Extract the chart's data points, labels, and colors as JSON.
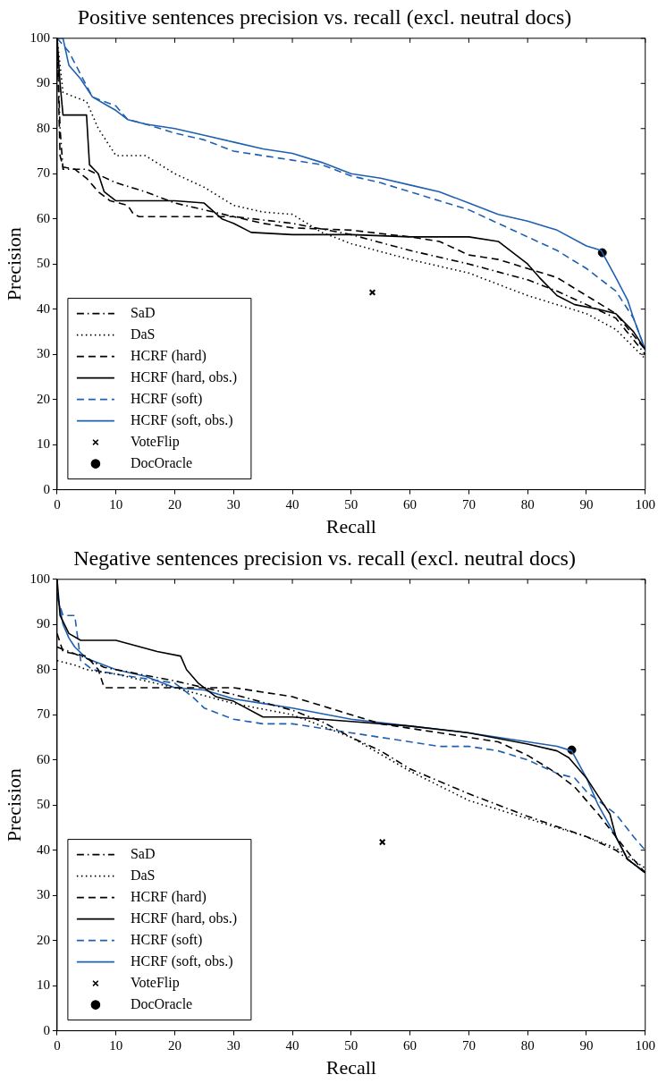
{
  "chart_data": [
    {
      "type": "line",
      "title": "Positive sentences precision vs. recall (excl. neutral docs)",
      "xlabel": "Recall",
      "ylabel": "Precision",
      "xlim": [
        0,
        100
      ],
      "ylim": [
        0,
        100
      ],
      "xticks": [
        0,
        10,
        20,
        30,
        40,
        50,
        60,
        70,
        80,
        90,
        100
      ],
      "yticks": [
        0,
        10,
        20,
        30,
        40,
        50,
        60,
        70,
        80,
        90,
        100
      ],
      "grid": false,
      "legend": "bottom left",
      "series": [
        {
          "name": "SaD",
          "line_style": "dashdot",
          "color": "#000000",
          "x": [
            0,
            0.5,
            1,
            5,
            10,
            15,
            20,
            25,
            30,
            40,
            50,
            60,
            70,
            80,
            85,
            90,
            95,
            100
          ],
          "values": [
            100,
            80,
            71,
            71,
            68,
            66,
            63.5,
            62,
            60.5,
            59,
            56.5,
            53,
            50,
            46.5,
            44,
            41,
            38,
            30
          ]
        },
        {
          "name": "DaS",
          "line_style": "dotted",
          "color": "#000000",
          "x": [
            0,
            1,
            5,
            7,
            10,
            15,
            20,
            25,
            30,
            35,
            40,
            45,
            50,
            60,
            70,
            80,
            90,
            95,
            100
          ],
          "values": [
            100,
            88,
            86,
            80,
            74,
            74,
            70,
            67,
            63,
            61.5,
            61,
            57,
            54.5,
            51,
            48,
            43,
            39,
            35.5,
            29
          ]
        },
        {
          "name": "HCRF (hard)",
          "line_style": "dashed",
          "color": "#000000",
          "x": [
            0,
            0.5,
            1,
            3,
            5,
            7,
            9,
            12,
            13,
            14,
            30,
            35,
            40,
            50,
            60,
            65,
            70,
            75,
            80,
            85,
            90,
            95,
            100
          ],
          "values": [
            100,
            74,
            71.5,
            71,
            69,
            66,
            64,
            63,
            61,
            60.5,
            60.5,
            59,
            58,
            57.5,
            56,
            55,
            52,
            51,
            49,
            47,
            43,
            39,
            31
          ]
        },
        {
          "name": "HCRF (hard, obs.)",
          "line_style": "solid",
          "color": "#000000",
          "x": [
            0,
            0.5,
            1,
            5,
            5.5,
            7,
            8,
            10,
            20,
            25,
            28,
            30,
            33,
            40,
            50,
            60,
            70,
            75,
            80,
            82,
            85,
            88,
            92,
            95,
            98,
            100
          ],
          "values": [
            100,
            90,
            83,
            83,
            72,
            70,
            66,
            64,
            64,
            63.5,
            60,
            59,
            57,
            56.5,
            56.5,
            56,
            56,
            55,
            50,
            47,
            43,
            41,
            40,
            39,
            35,
            31
          ]
        },
        {
          "name": "HCRF (soft)",
          "line_style": "dashed",
          "color": "#2060b0",
          "x": [
            0,
            2,
            4,
            6,
            8,
            10,
            12,
            15,
            20,
            25,
            30,
            35,
            40,
            45,
            50,
            55,
            60,
            65,
            70,
            75,
            80,
            85,
            90,
            95,
            98,
            100
          ],
          "values": [
            100,
            97,
            92,
            87,
            86,
            85,
            82,
            81,
            79,
            77.5,
            75,
            74,
            73,
            72,
            69.5,
            68,
            66,
            64,
            62,
            59,
            56,
            53,
            49,
            44,
            38,
            31
          ]
        },
        {
          "name": "HCRF (soft, obs.)",
          "line_style": "solid",
          "color": "#2060b0",
          "x": [
            0,
            1,
            2,
            4,
            6,
            8,
            10,
            12,
            15,
            20,
            25,
            30,
            35,
            40,
            45,
            50,
            55,
            60,
            65,
            70,
            75,
            80,
            85,
            90,
            92.5,
            95,
            97,
            98,
            100
          ],
          "values": [
            100,
            100,
            94,
            91,
            87,
            85.5,
            84,
            82,
            81,
            80,
            78.5,
            77,
            75.5,
            74.5,
            72.5,
            70,
            69,
            67.5,
            66,
            63.5,
            61,
            59.5,
            57.5,
            54,
            53,
            47,
            42,
            38,
            31
          ]
        },
        {
          "name": "VoteFlip",
          "type": "scatter",
          "marker": "cross",
          "color": "#000000",
          "x": [
            53.6
          ],
          "values": [
            43.7
          ]
        },
        {
          "name": "DocOracle",
          "type": "scatter",
          "marker": "circle",
          "color": "#000000",
          "x": [
            92.7
          ],
          "values": [
            52.5
          ]
        }
      ]
    },
    {
      "type": "line",
      "title": "Negative sentences precision vs. recall (excl. neutral docs)",
      "xlabel": "Recall",
      "ylabel": "Precision",
      "xlim": [
        0,
        100
      ],
      "ylim": [
        0,
        100
      ],
      "xticks": [
        0,
        10,
        20,
        30,
        40,
        50,
        60,
        70,
        80,
        90,
        100
      ],
      "yticks": [
        0,
        10,
        20,
        30,
        40,
        50,
        60,
        70,
        80,
        90,
        100
      ],
      "grid": false,
      "legend": "bottom left",
      "series": [
        {
          "name": "SaD",
          "line_style": "dashdot",
          "color": "#000000",
          "x": [
            0,
            2,
            5,
            8,
            10,
            20,
            30,
            40,
            45,
            50,
            55,
            60,
            70,
            80,
            90,
            95,
            100
          ],
          "values": [
            85,
            84,
            82.5,
            80.5,
            80,
            77.5,
            74.5,
            71,
            68.5,
            65,
            62,
            58,
            52.5,
            47.5,
            43,
            40,
            35
          ]
        },
        {
          "name": "DaS",
          "line_style": "dotted",
          "color": "#000000",
          "x": [
            0,
            3,
            5,
            10,
            20,
            30,
            40,
            50,
            60,
            70,
            80,
            90,
            95,
            100
          ],
          "values": [
            82,
            81,
            80,
            79,
            76,
            72.5,
            70,
            65,
            57.5,
            51,
            47,
            43,
            40.5,
            36
          ]
        },
        {
          "name": "HCRF (hard)",
          "line_style": "dashed",
          "color": "#000000",
          "x": [
            0,
            1,
            5,
            7,
            8,
            15,
            20,
            25,
            30,
            35,
            40,
            45,
            50,
            55,
            60,
            70,
            75,
            80,
            85,
            88,
            92,
            95,
            98,
            100
          ],
          "values": [
            88,
            84,
            83,
            80,
            76,
            76,
            76,
            76,
            76,
            75,
            74,
            72,
            70,
            68,
            67,
            65,
            64,
            61,
            57,
            54,
            48,
            43,
            38,
            35
          ]
        },
        {
          "name": "HCRF (hard, obs.)",
          "line_style": "solid",
          "color": "#000000",
          "x": [
            0,
            0.5,
            2,
            4,
            10,
            17,
            21,
            22,
            24,
            27,
            30,
            35,
            40,
            50,
            60,
            70,
            80,
            85,
            87,
            90,
            92,
            94,
            95,
            97,
            100
          ],
          "values": [
            100,
            92,
            88,
            86.5,
            86.5,
            84,
            83,
            80,
            77,
            74,
            73,
            69.5,
            69.5,
            68.5,
            67.5,
            66,
            63.5,
            62,
            60.5,
            56,
            52,
            48,
            43,
            38,
            35
          ]
        },
        {
          "name": "HCRF (soft)",
          "line_style": "dashed",
          "color": "#2060b0",
          "x": [
            0,
            1,
            3,
            4,
            6,
            10,
            15,
            20,
            23,
            25,
            30,
            35,
            40,
            45,
            50,
            55,
            60,
            65,
            70,
            75,
            80,
            85,
            88,
            90,
            95,
            98,
            100
          ],
          "values": [
            96,
            92,
            92,
            82,
            80,
            79,
            78,
            77,
            74,
            71.5,
            69,
            68,
            68,
            67,
            66,
            65,
            64,
            63,
            63,
            62,
            60,
            57,
            56,
            53,
            48,
            43,
            40
          ]
        },
        {
          "name": "HCRF (soft, obs.)",
          "line_style": "solid",
          "color": "#2060b0",
          "x": [
            0,
            1,
            2,
            3,
            5,
            10,
            15,
            20,
            25,
            30,
            35,
            40,
            50,
            60,
            70,
            80,
            85,
            87.5,
            90,
            92,
            95,
            97,
            100
          ],
          "values": [
            97,
            90,
            87,
            85,
            82.5,
            80,
            78.5,
            76,
            75.5,
            73.5,
            72.5,
            71.5,
            69,
            67.5,
            66,
            64,
            63,
            62,
            56,
            50,
            43,
            38,
            35
          ]
        },
        {
          "name": "VoteFlip",
          "type": "scatter",
          "marker": "cross",
          "color": "#000000",
          "x": [
            55.3
          ],
          "values": [
            41.8
          ]
        },
        {
          "name": "DocOracle",
          "type": "scatter",
          "marker": "circle",
          "color": "#000000",
          "x": [
            87.5
          ],
          "values": [
            62.2
          ]
        }
      ]
    }
  ]
}
